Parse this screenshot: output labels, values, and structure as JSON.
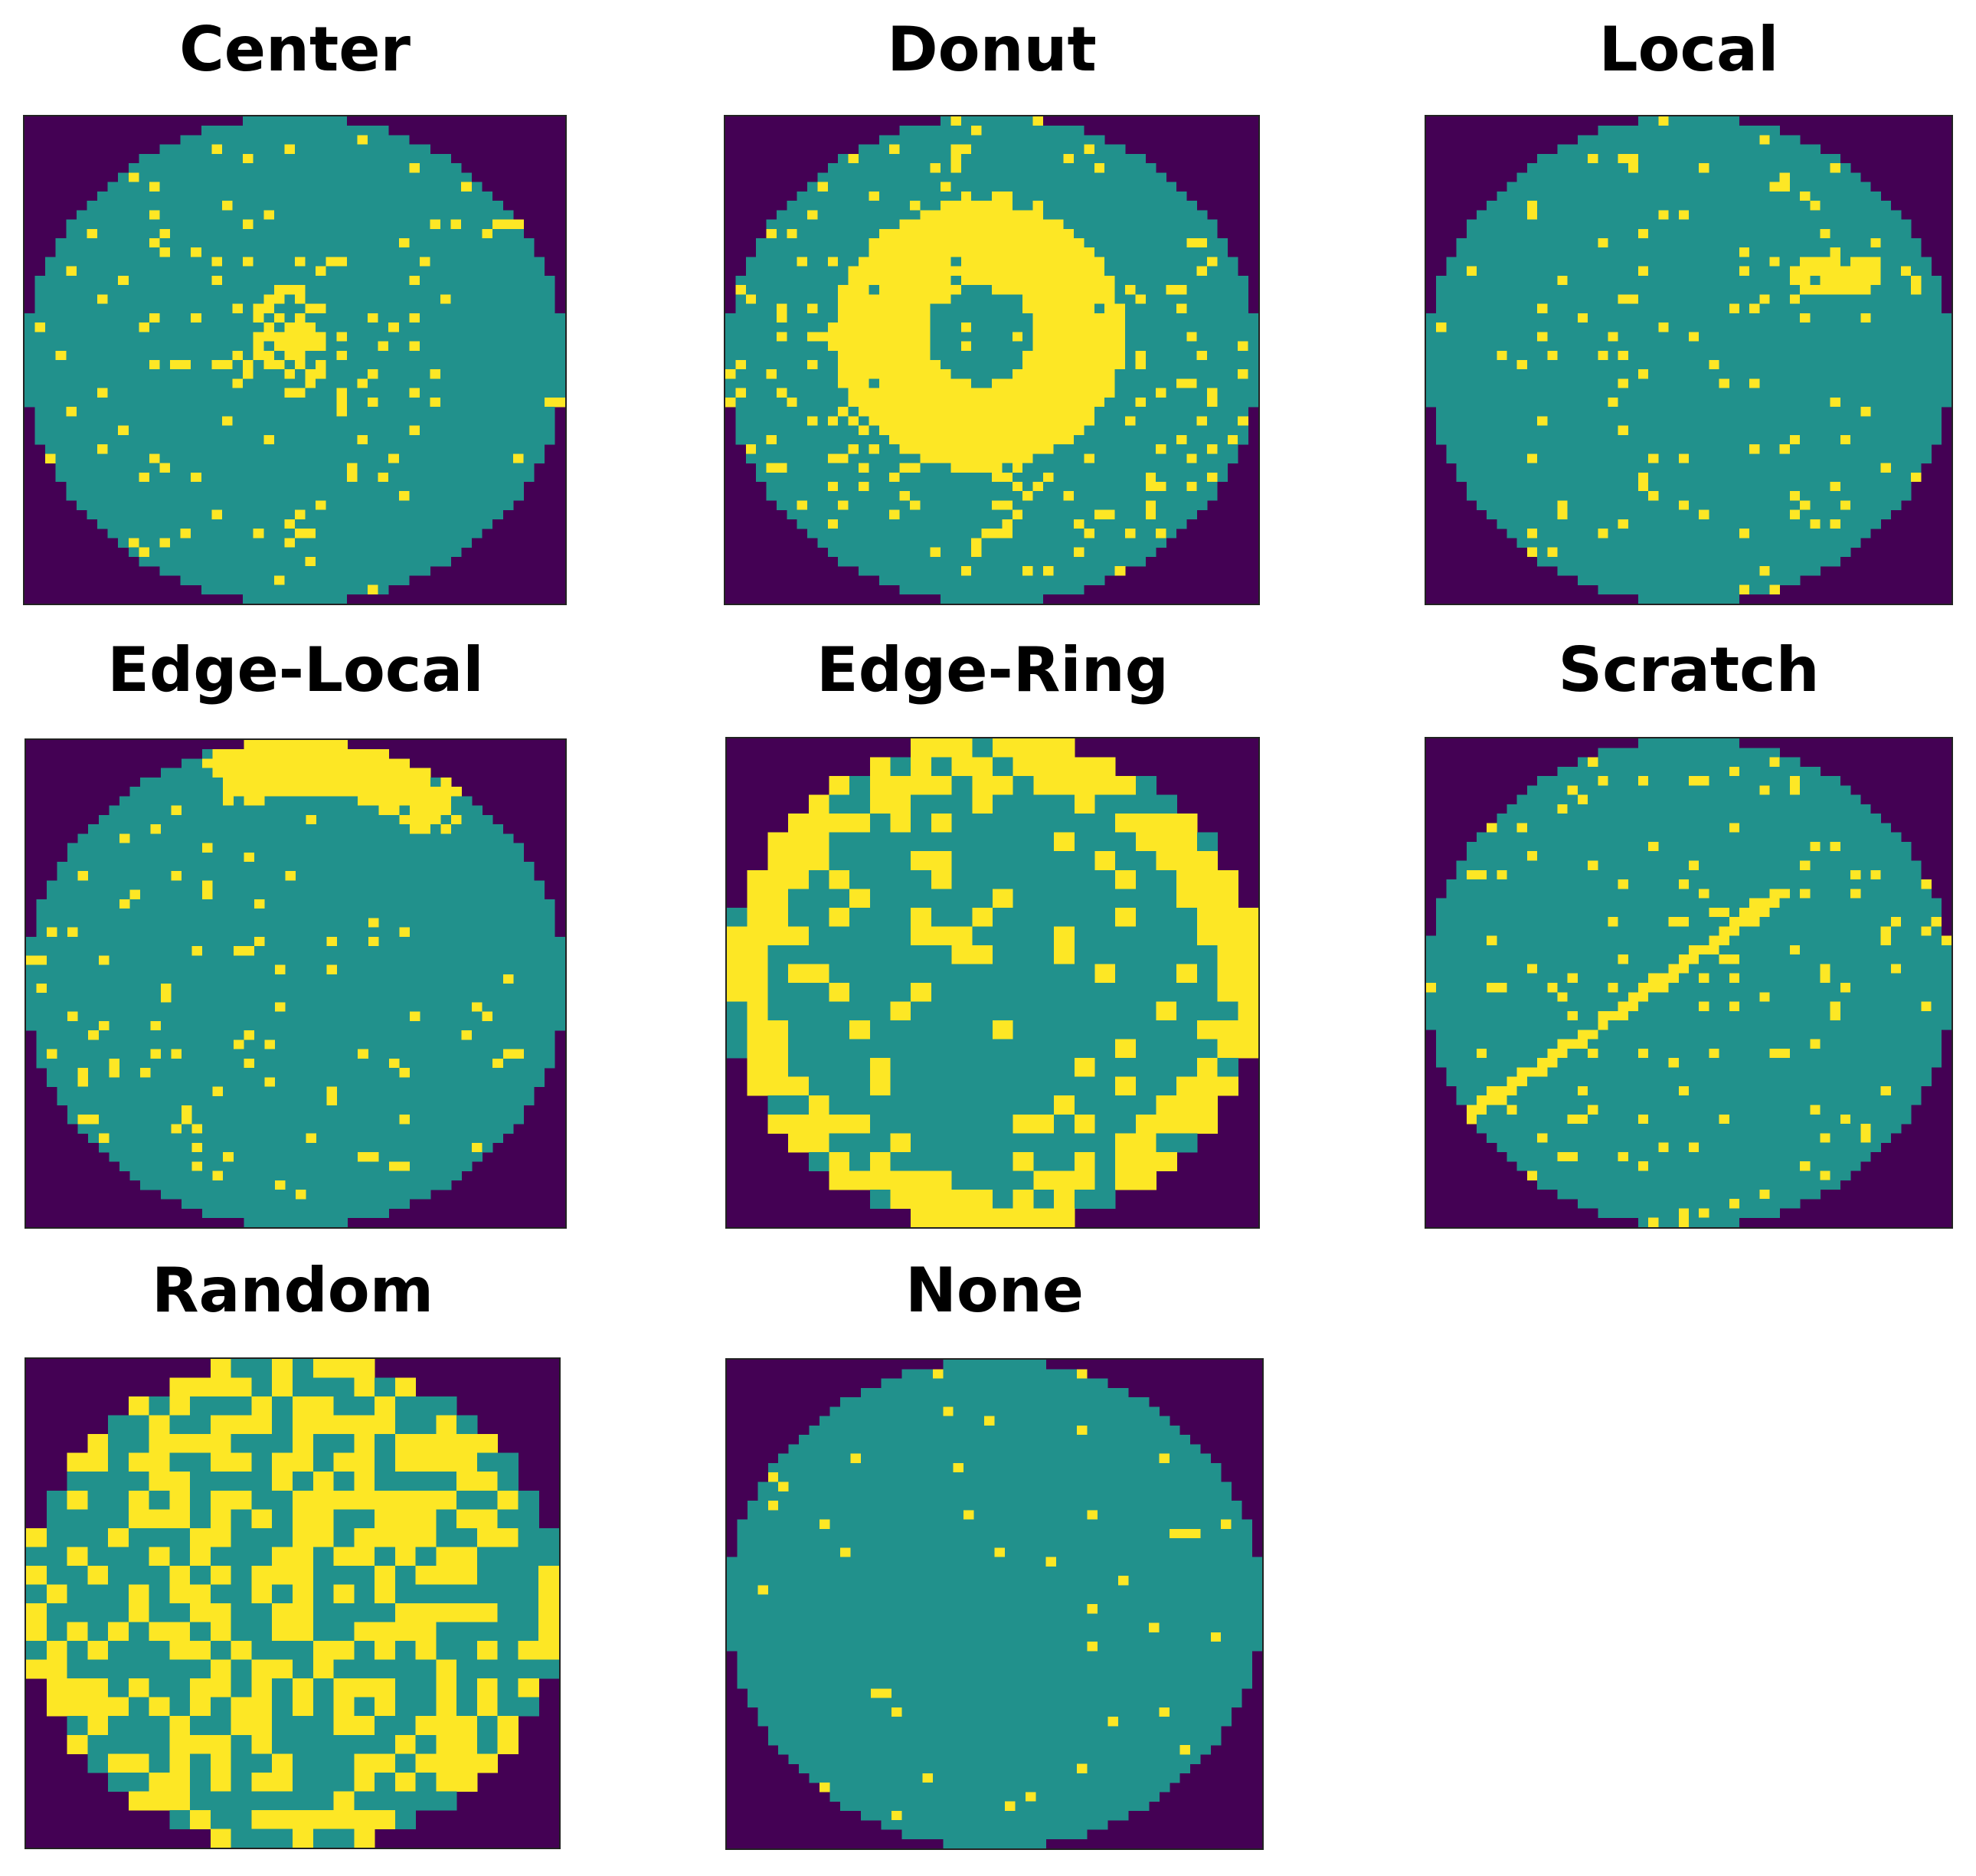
{
  "colors": {
    "background": "#440154",
    "die": "#21918c",
    "defect": "#fde725"
  },
  "panels": [
    {
      "title": "Center",
      "pattern": "center",
      "grid": 52,
      "seed": 11
    },
    {
      "title": "Donut",
      "pattern": "donut",
      "grid": 52,
      "seed": 23
    },
    {
      "title": "Local",
      "pattern": "local",
      "grid": 52,
      "seed": 37
    },
    {
      "title": "Edge-Local",
      "pattern": "edge-local",
      "grid": 52,
      "seed": 41
    },
    {
      "title": "Edge-Ring",
      "pattern": "edge-ring",
      "grid": 26,
      "seed": 53
    },
    {
      "title": "Scratch",
      "pattern": "scratch",
      "grid": 52,
      "seed": 67
    },
    {
      "title": "Random",
      "pattern": "random",
      "grid": 26,
      "seed": 79
    },
    {
      "title": "None",
      "pattern": "none",
      "grid": 52,
      "seed": 97
    }
  ]
}
